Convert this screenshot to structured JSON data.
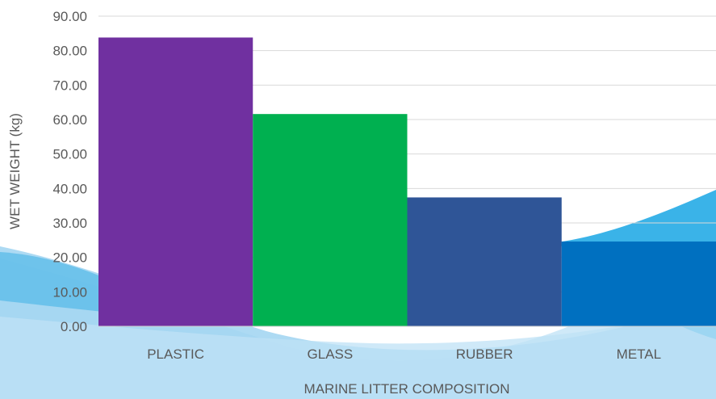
{
  "chart_data": {
    "type": "bar",
    "title": "",
    "xlabel": "MARINE LITTER COMPOSITION",
    "ylabel": "WET WEIGHT (kg)",
    "categories": [
      "PLASTIC",
      "GLASS",
      "RUBBER",
      "METAL"
    ],
    "values": [
      83.8,
      61.6,
      37.4,
      24.6
    ],
    "bar_colors": [
      "#7030A0",
      "#00B050",
      "#2F5597",
      "#0070C0"
    ],
    "ylim": [
      0,
      90
    ],
    "yticks": [
      "0.00",
      "10.00",
      "20.00",
      "30.00",
      "40.00",
      "50.00",
      "60.00",
      "70.00",
      "80.00",
      "90.00"
    ],
    "grid": true,
    "legend": "none"
  },
  "colors": {
    "grid": "#d9d9d9",
    "axis_text": "#595959",
    "wave_light": "#a9d6f2",
    "wave_mid": "#6cc0ec",
    "wave_bright": "#3ab3e8"
  }
}
